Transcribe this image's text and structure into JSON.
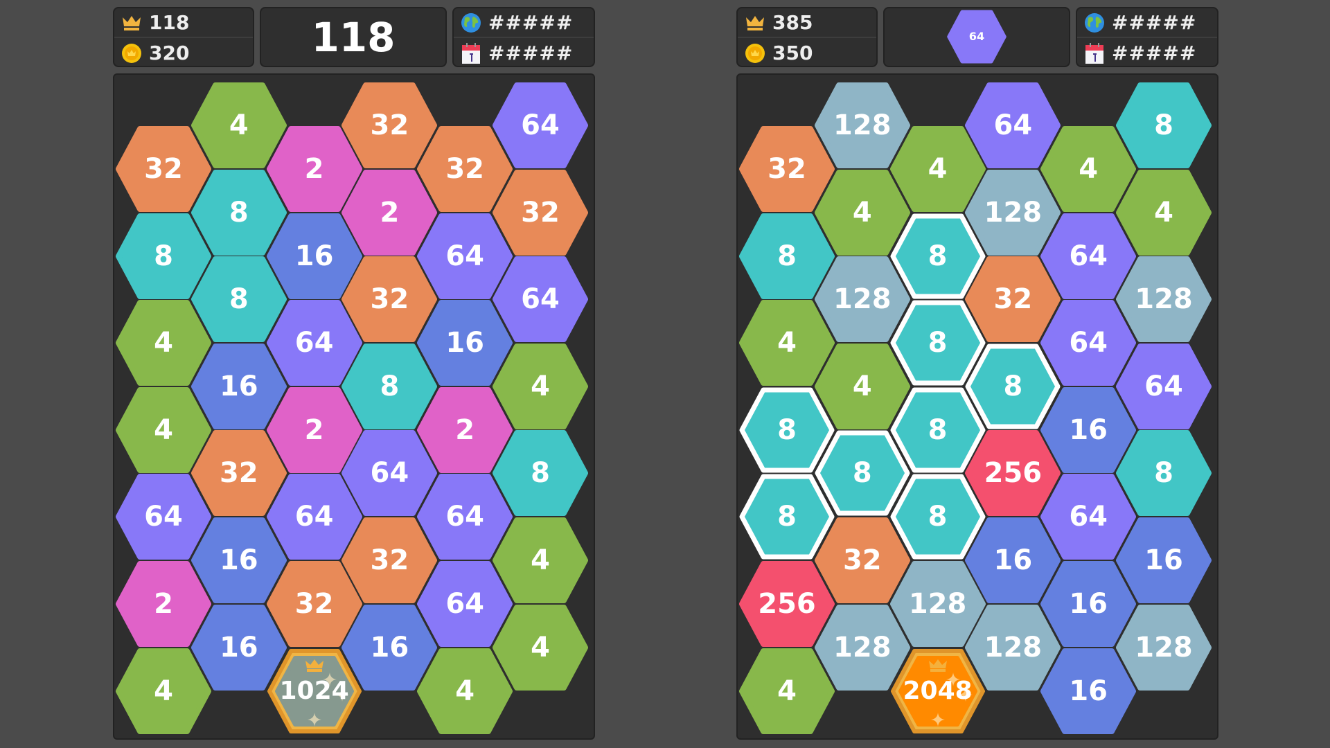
{
  "colors": {
    "2": "#e062c8",
    "4": "#88b84b",
    "8": "#42c6c6",
    "16": "#6480e0",
    "32": "#e88a58",
    "64": "#8878f8",
    "128": "#8fb5c6",
    "256": "#f4506e",
    "1024": "#86998f",
    "2048": "#ff8a00",
    "gold": "#f0b545",
    "highlight": "#ffffff"
  },
  "panels": [
    {
      "best_score": "118",
      "coins": "320",
      "current_score": "118",
      "center_tile": null,
      "world_rank": "#####",
      "daily_rank": "#####",
      "columns": [
        [
          "32",
          "8",
          "4",
          "4",
          "64",
          "2",
          "4"
        ],
        [
          "4",
          "8",
          "8",
          "16",
          "32",
          "16",
          "16"
        ],
        [
          "2",
          "16",
          "64",
          "2",
          "64",
          "32",
          "1024"
        ],
        [
          "32",
          "2",
          "32",
          "8",
          "64",
          "32",
          "16"
        ],
        [
          "32",
          "64",
          "16",
          "2",
          "64",
          "64",
          "4"
        ],
        [
          "64",
          "32",
          "64",
          "4",
          "8",
          "4",
          "4"
        ]
      ],
      "special_tiles": [
        "1024"
      ],
      "highlighted": []
    },
    {
      "best_score": "385",
      "coins": "350",
      "current_score": null,
      "center_tile": "64",
      "world_rank": "#####",
      "daily_rank": "#####",
      "columns": [
        [
          "32",
          "8",
          "4",
          "8",
          "8",
          "256",
          "4"
        ],
        [
          "128",
          "4",
          "128",
          "4",
          "8",
          "32",
          "128"
        ],
        [
          "4",
          "8",
          "8",
          "8",
          "8",
          "128",
          "2048"
        ],
        [
          "64",
          "128",
          "32",
          "8",
          "256",
          "16",
          "128"
        ],
        [
          "4",
          "64",
          "64",
          "16",
          "64",
          "16",
          "16"
        ],
        [
          "8",
          "4",
          "128",
          "64",
          "8",
          "16",
          "128"
        ]
      ],
      "special_tiles": [
        "2048"
      ],
      "highlighted": [
        [
          0,
          3
        ],
        [
          0,
          4
        ],
        [
          1,
          4
        ],
        [
          2,
          1
        ],
        [
          2,
          2
        ],
        [
          2,
          3
        ],
        [
          2,
          4
        ],
        [
          3,
          3
        ]
      ]
    }
  ],
  "icons": {
    "best": "crown-icon",
    "coins": "coin-icon",
    "world": "globe-icon",
    "daily": "calendar-icon"
  }
}
